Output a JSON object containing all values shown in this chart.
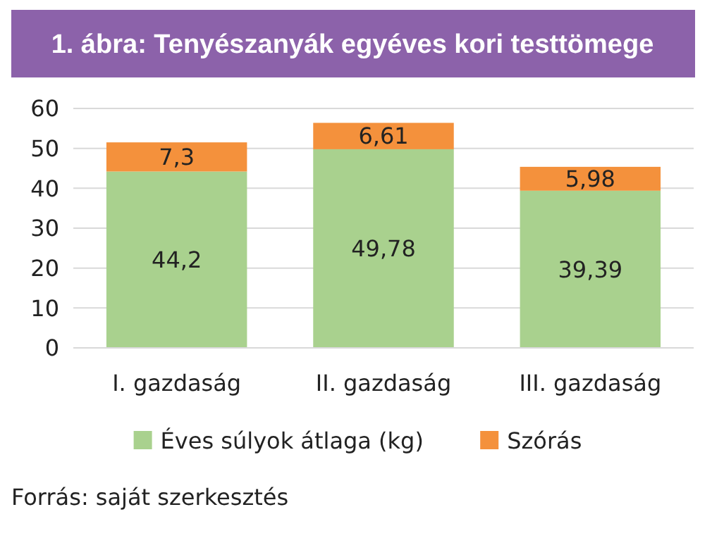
{
  "chart_data": {
    "type": "bar",
    "title": "1. ábra: Tenyészanyák egyéves kori testtömege",
    "categories": [
      "I. gazdaság",
      "II. gazdaság",
      "III. gazdaság"
    ],
    "stacked": true,
    "series": [
      {
        "name": "Éves súlyok átlaga (kg)",
        "color": "#a9d18e",
        "values": [
          44.2,
          49.78,
          39.39
        ],
        "value_labels": [
          "44,2",
          "49,78",
          "39,39"
        ]
      },
      {
        "name": "Szórás",
        "color": "#f4913c",
        "values": [
          7.3,
          6.61,
          5.98
        ],
        "value_labels": [
          "7,3",
          "6,61",
          "5,98"
        ]
      }
    ],
    "ylim": [
      0,
      60
    ],
    "yticks": [
      0,
      10,
      20,
      30,
      40,
      50,
      60
    ],
    "grid": "y",
    "legend": "bottom",
    "annotations": [
      "Forrás: saját szerkesztés"
    ]
  }
}
